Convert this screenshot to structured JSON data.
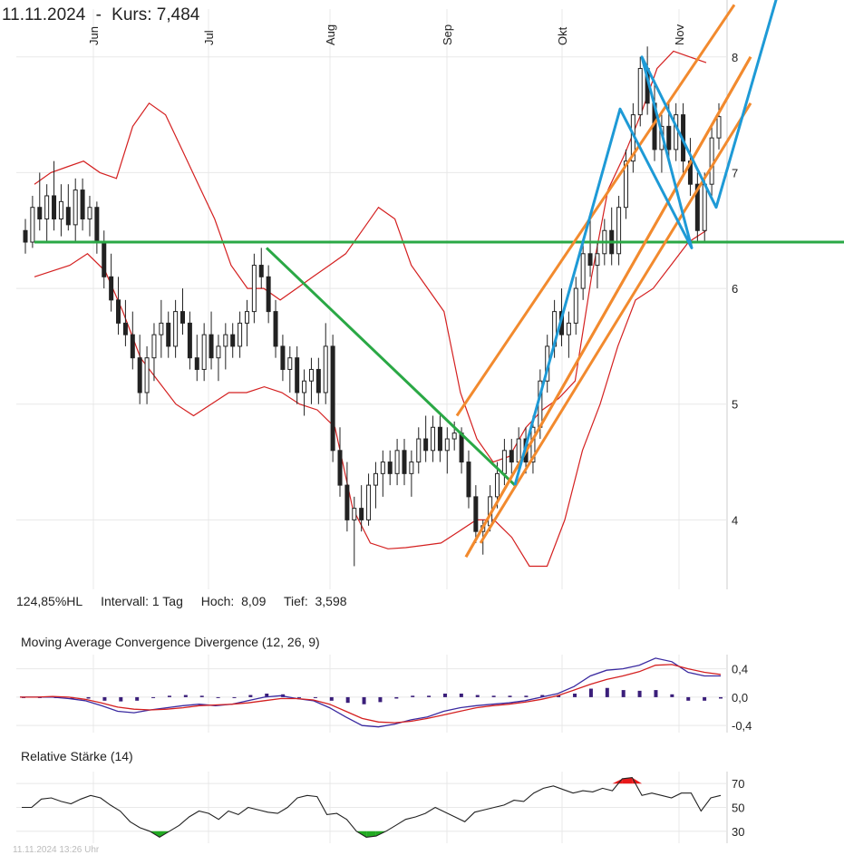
{
  "header": {
    "date": "11.11.2024",
    "separator": "-",
    "price_label": "Kurs: 7,484"
  },
  "stats": {
    "range_hl": "124,85%HL",
    "interval": "Intervall: 1 Tag",
    "high": "Hoch:  8,09",
    "low": "Tief:  3,598"
  },
  "macd_panel": {
    "title": "Moving Average Convergence Divergence (12, 26, 9)"
  },
  "rsi_panel": {
    "title": "Relative Stärke (14)"
  },
  "footer": {
    "text": "11.11.2024 13:26 Uhr"
  },
  "colors": {
    "candle": "#222222",
    "bollinger": "#d42020",
    "horizontal_line": "#2aa845",
    "downtrend_line": "#2aa845",
    "channel": "#f28a2e",
    "zigzag": "#1e9ad6",
    "macd_line": "#3a2aa0",
    "signal_line": "#d42020",
    "macd_hist": "#3a1e7a",
    "rsi_line": "#222222",
    "rsi_overbought": "#e8181a",
    "rsi_oversold": "#22aa22",
    "grid": "#e8e8e8"
  },
  "chart_data": [
    {
      "type": "candlestick",
      "title": "",
      "x_ticks": [
        "Jun",
        "Jul",
        "Aug",
        "Sep",
        "Okt",
        "Nov"
      ],
      "y_ticks": [
        4,
        5,
        6,
        7,
        8
      ],
      "ylim": [
        3.4,
        8.1
      ],
      "high": 8.09,
      "low": 3.598,
      "series": [
        {
          "kind": "ohlc",
          "values": [
            [
              6.5,
              6.6,
              6.3,
              6.4
            ],
            [
              6.4,
              6.8,
              6.35,
              6.7
            ],
            [
              6.7,
              7.0,
              6.5,
              6.6
            ],
            [
              6.6,
              6.9,
              6.4,
              6.8
            ],
            [
              6.8,
              7.1,
              6.5,
              6.6
            ],
            [
              6.6,
              6.9,
              6.45,
              6.75
            ],
            [
              6.7,
              6.9,
              6.5,
              6.55
            ],
            [
              6.55,
              6.95,
              6.4,
              6.85
            ],
            [
              6.85,
              6.95,
              6.5,
              6.6
            ],
            [
              6.6,
              6.8,
              6.45,
              6.7
            ],
            [
              6.7,
              6.75,
              6.3,
              6.4
            ],
            [
              6.4,
              6.5,
              6.0,
              6.1
            ],
            [
              6.1,
              6.3,
              5.8,
              5.9
            ],
            [
              5.9,
              6.1,
              5.6,
              5.7
            ],
            [
              5.7,
              5.9,
              5.5,
              5.6
            ],
            [
              5.6,
              5.8,
              5.3,
              5.4
            ],
            [
              5.4,
              5.6,
              5.0,
              5.1
            ],
            [
              5.1,
              5.5,
              5.0,
              5.4
            ],
            [
              5.4,
              5.7,
              5.2,
              5.6
            ],
            [
              5.6,
              5.9,
              5.4,
              5.7
            ],
            [
              5.7,
              5.8,
              5.4,
              5.5
            ],
            [
              5.5,
              5.9,
              5.4,
              5.8
            ],
            [
              5.8,
              6.0,
              5.6,
              5.7
            ],
            [
              5.7,
              5.8,
              5.3,
              5.4
            ],
            [
              5.4,
              5.6,
              5.2,
              5.3
            ],
            [
              5.3,
              5.7,
              5.2,
              5.6
            ],
            [
              5.6,
              5.8,
              5.3,
              5.4
            ],
            [
              5.4,
              5.6,
              5.2,
              5.5
            ],
            [
              5.5,
              5.7,
              5.3,
              5.6
            ],
            [
              5.6,
              5.7,
              5.4,
              5.5
            ],
            [
              5.5,
              5.8,
              5.4,
              5.7
            ],
            [
              5.7,
              5.9,
              5.5,
              5.8
            ],
            [
              5.8,
              6.3,
              5.7,
              6.2
            ],
            [
              6.2,
              6.35,
              6.0,
              6.1
            ],
            [
              6.1,
              6.2,
              5.7,
              5.8
            ],
            [
              5.8,
              5.9,
              5.4,
              5.5
            ],
            [
              5.5,
              5.6,
              5.2,
              5.3
            ],
            [
              5.3,
              5.5,
              5.1,
              5.4
            ],
            [
              5.4,
              5.5,
              5.0,
              5.1
            ],
            [
              5.1,
              5.3,
              4.9,
              5.2
            ],
            [
              5.2,
              5.4,
              5.0,
              5.3
            ],
            [
              5.3,
              5.4,
              5.0,
              5.1
            ],
            [
              5.1,
              5.7,
              5.0,
              5.5
            ],
            [
              5.5,
              5.6,
              4.5,
              4.6
            ],
            [
              4.6,
              4.8,
              4.2,
              4.3
            ],
            [
              4.3,
              4.5,
              3.9,
              4.0
            ],
            [
              4.0,
              4.2,
              3.6,
              4.1
            ],
            [
              4.1,
              4.3,
              3.9,
              4.0
            ],
            [
              4.0,
              4.4,
              3.95,
              4.3
            ],
            [
              4.3,
              4.5,
              4.1,
              4.4
            ],
            [
              4.4,
              4.6,
              4.2,
              4.5
            ],
            [
              4.5,
              4.6,
              4.3,
              4.4
            ],
            [
              4.4,
              4.7,
              4.3,
              4.6
            ],
            [
              4.6,
              4.7,
              4.3,
              4.4
            ],
            [
              4.4,
              4.6,
              4.2,
              4.5
            ],
            [
              4.5,
              4.8,
              4.4,
              4.7
            ],
            [
              4.7,
              4.9,
              4.5,
              4.6
            ],
            [
              4.6,
              4.9,
              4.5,
              4.8
            ],
            [
              4.8,
              4.9,
              4.5,
              4.6
            ],
            [
              4.6,
              4.8,
              4.4,
              4.7
            ],
            [
              4.7,
              4.85,
              4.6,
              4.75
            ],
            [
              4.75,
              4.8,
              4.4,
              4.5
            ],
            [
              4.5,
              4.6,
              4.1,
              4.2
            ],
            [
              4.2,
              4.3,
              3.8,
              3.9
            ],
            [
              3.9,
              4.0,
              3.7,
              3.95
            ],
            [
              3.95,
              4.3,
              3.9,
              4.2
            ],
            [
              4.2,
              4.5,
              4.1,
              4.4
            ],
            [
              4.4,
              4.7,
              4.3,
              4.6
            ],
            [
              4.6,
              4.7,
              4.4,
              4.5
            ],
            [
              4.5,
              4.8,
              4.4,
              4.7
            ],
            [
              4.7,
              4.8,
              4.4,
              4.5
            ],
            [
              4.5,
              4.9,
              4.4,
              4.8
            ],
            [
              4.8,
              5.3,
              4.7,
              5.2
            ],
            [
              5.2,
              5.6,
              5.1,
              5.5
            ],
            [
              5.5,
              5.9,
              5.4,
              5.8
            ],
            [
              5.8,
              6.0,
              5.5,
              5.6
            ],
            [
              5.6,
              5.8,
              5.4,
              5.7
            ],
            [
              5.7,
              6.1,
              5.6,
              6.0
            ],
            [
              6.0,
              6.4,
              5.9,
              6.3
            ],
            [
              6.3,
              6.6,
              6.1,
              6.2
            ],
            [
              6.2,
              6.4,
              6.0,
              6.3
            ],
            [
              6.3,
              6.6,
              6.2,
              6.5
            ],
            [
              6.5,
              6.7,
              6.2,
              6.3
            ],
            [
              6.3,
              6.8,
              6.2,
              6.7
            ],
            [
              6.7,
              7.2,
              6.6,
              7.1
            ],
            [
              7.1,
              7.6,
              7.0,
              7.5
            ],
            [
              7.5,
              8.0,
              7.4,
              7.9
            ],
            [
              7.9,
              8.09,
              7.5,
              7.6
            ],
            [
              7.6,
              7.8,
              7.1,
              7.2
            ],
            [
              7.2,
              7.5,
              7.0,
              7.4
            ],
            [
              7.4,
              7.6,
              7.1,
              7.2
            ],
            [
              7.2,
              7.6,
              7.1,
              7.5
            ],
            [
              7.5,
              7.6,
              7.0,
              7.1
            ],
            [
              7.1,
              7.3,
              6.8,
              6.9
            ],
            [
              6.9,
              7.0,
              6.4,
              6.5
            ],
            [
              6.5,
              7.0,
              6.4,
              6.9
            ],
            [
              6.9,
              7.4,
              6.8,
              7.3
            ],
            [
              7.3,
              7.6,
              7.2,
              7.484
            ]
          ]
        },
        {
          "name": "",
          "kind": "bollinger_upper",
          "values": [
            6.9,
            7.0,
            7.05,
            7.1,
            7.0,
            6.95,
            7.4,
            7.6,
            7.5,
            7.2,
            6.9,
            6.6,
            6.2,
            6.0,
            6.0,
            5.9,
            6.0,
            6.1,
            6.2,
            6.3,
            6.5,
            6.7,
            6.6,
            6.2,
            6.0,
            5.8,
            5.1,
            4.7,
            4.5,
            4.55,
            4.8,
            4.95,
            5.05,
            5.2,
            6.1,
            6.85,
            7.15,
            7.5,
            7.9,
            8.05,
            8.0,
            7.95
          ]
        },
        {
          "name": "",
          "kind": "bollinger_lower",
          "values": [
            6.1,
            6.15,
            6.2,
            6.3,
            6.15,
            5.8,
            5.4,
            5.2,
            5.0,
            4.9,
            5.0,
            5.1,
            5.1,
            5.15,
            5.1,
            5.0,
            4.95,
            4.8,
            4.1,
            3.8,
            3.75,
            3.76,
            3.78,
            3.8,
            3.9,
            4.0,
            4.0,
            3.85,
            3.6,
            3.6,
            4.0,
            4.6,
            5.0,
            5.5,
            5.9,
            6.0,
            6.2,
            6.4,
            6.5
          ]
        }
      ],
      "horizontal_line": 6.4,
      "drawings": [
        {
          "kind": "downtrend",
          "points": [
            [
              "Jul",
              6.35
            ],
            [
              "Sep",
              4.3
            ]
          ]
        },
        {
          "kind": "channel",
          "lines": [
            [
              [
                3.7,
                0
              ],
              [
                8.0,
                1
              ]
            ],
            [
              [
                4.9,
                0
              ],
              [
                8.2,
                1
              ]
            ]
          ]
        },
        {
          "kind": "zigzag",
          "points": [
            4.3,
            7.6,
            6.4,
            8.0,
            6.4,
            7.9,
            6.7,
            8.6
          ]
        }
      ]
    },
    {
      "type": "line",
      "title": "Moving Average Convergence Divergence (12, 26, 9)",
      "y_ticks": [
        "0,4",
        "0,0",
        "-0,4"
      ],
      "ylim": [
        -0.5,
        0.6
      ],
      "series": [
        {
          "name": "",
          "kind": "macd",
          "values": [
            0.0,
            0.0,
            0.0,
            -0.02,
            -0.05,
            -0.12,
            -0.2,
            -0.22,
            -0.18,
            -0.15,
            -0.12,
            -0.1,
            -0.12,
            -0.1,
            -0.05,
            0.0,
            0.02,
            -0.02,
            -0.05,
            -0.15,
            -0.28,
            -0.4,
            -0.42,
            -0.38,
            -0.32,
            -0.28,
            -0.2,
            -0.15,
            -0.12,
            -0.1,
            -0.08,
            -0.05,
            0.0,
            0.05,
            0.15,
            0.3,
            0.38,
            0.4,
            0.45,
            0.55,
            0.5,
            0.35,
            0.3,
            0.3
          ]
        },
        {
          "name": "",
          "kind": "signal",
          "values": [
            0.0,
            0.0,
            0.01,
            0.0,
            -0.03,
            -0.08,
            -0.14,
            -0.17,
            -0.18,
            -0.17,
            -0.15,
            -0.12,
            -0.11,
            -0.1,
            -0.08,
            -0.05,
            -0.02,
            -0.02,
            -0.04,
            -0.1,
            -0.2,
            -0.3,
            -0.35,
            -0.36,
            -0.34,
            -0.3,
            -0.25,
            -0.2,
            -0.15,
            -0.12,
            -0.1,
            -0.07,
            -0.03,
            0.02,
            0.1,
            0.18,
            0.25,
            0.3,
            0.36,
            0.45,
            0.46,
            0.4,
            0.35,
            0.32
          ]
        },
        {
          "name": "",
          "kind": "histogram",
          "values": [
            0.0,
            0.0,
            0.0,
            -0.02,
            -0.02,
            -0.05,
            -0.06,
            -0.05,
            0.0,
            0.02,
            0.03,
            0.02,
            -0.01,
            0.0,
            0.03,
            0.05,
            0.04,
            0.0,
            -0.01,
            -0.05,
            -0.08,
            -0.1,
            -0.07,
            -0.02,
            0.02,
            0.02,
            0.05,
            0.05,
            0.03,
            0.02,
            0.02,
            0.02,
            0.03,
            0.03,
            0.05,
            0.12,
            0.13,
            0.1,
            0.09,
            0.1,
            0.04,
            -0.05,
            -0.05,
            -0.02
          ]
        }
      ]
    },
    {
      "type": "line",
      "title": "Relative Stärke (14)",
      "y_ticks": [
        70,
        50,
        30
      ],
      "ylim": [
        20,
        80
      ],
      "series": [
        {
          "name": "",
          "kind": "rsi",
          "values": [
            50,
            50,
            57,
            58,
            55,
            53,
            57,
            60,
            58,
            52,
            47,
            38,
            33,
            30,
            25,
            30,
            35,
            42,
            47,
            45,
            40,
            47,
            44,
            50,
            48,
            46,
            45,
            50,
            58,
            60,
            59,
            44,
            45,
            40,
            30,
            25,
            26,
            30,
            35,
            40,
            42,
            45,
            50,
            46,
            42,
            38,
            46,
            48,
            50,
            52,
            56,
            55,
            62,
            66,
            68,
            65,
            62,
            64,
            63,
            66,
            64,
            74,
            75,
            60,
            62,
            60,
            58,
            62,
            62,
            47,
            58,
            60
          ]
        }
      ]
    }
  ]
}
